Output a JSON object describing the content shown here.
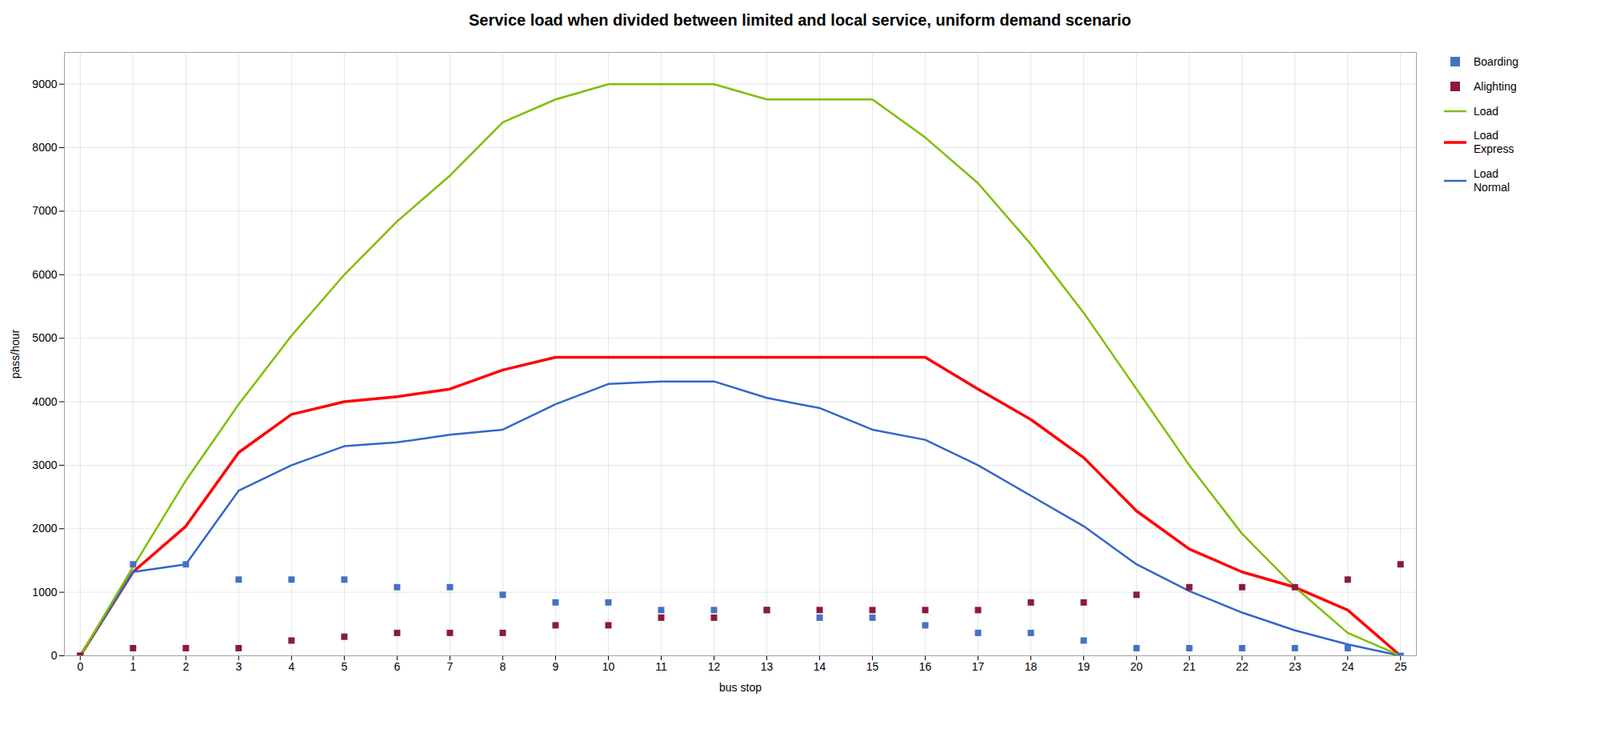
{
  "chart_data": {
    "type": "line",
    "title": "Service load when divided between limited and local service, uniform demand scenario",
    "xlabel": "bus stop",
    "ylabel": "pass/hour",
    "x": [
      0,
      1,
      2,
      3,
      4,
      5,
      6,
      7,
      8,
      9,
      10,
      11,
      12,
      13,
      14,
      15,
      16,
      17,
      18,
      19,
      20,
      21,
      22,
      23,
      24,
      25
    ],
    "series": [
      {
        "name": "Boarding",
        "type": "scatter",
        "marker": "square",
        "color": "#4472C4",
        "values": [
          0,
          1440,
          1440,
          1200,
          1200,
          1200,
          1080,
          1080,
          960,
          840,
          840,
          720,
          720,
          720,
          600,
          600,
          480,
          360,
          360,
          240,
          120,
          120,
          120,
          120,
          120,
          0
        ]
      },
      {
        "name": "Alighting",
        "type": "scatter",
        "marker": "square",
        "color": "#8B1A3A",
        "values": [
          0,
          120,
          120,
          120,
          240,
          300,
          360,
          360,
          360,
          480,
          480,
          600,
          600,
          720,
          720,
          720,
          720,
          720,
          840,
          840,
          960,
          1080,
          1080,
          1080,
          1200,
          1440
        ]
      },
      {
        "name": "Load",
        "type": "line",
        "color": "#7FBF00",
        "values": [
          0,
          1400,
          2760,
          3960,
          5040,
          6000,
          6840,
          7560,
          8400,
          8760,
          9000,
          9000,
          9000,
          8760,
          8760,
          8760,
          8160,
          7440,
          6480,
          5400,
          4200,
          3000,
          1920,
          1080,
          360,
          0
        ]
      },
      {
        "name": "Load\nExpress",
        "type": "line",
        "color": "#FF0000",
        "values": [
          0,
          1320,
          2040,
          3200,
          3800,
          4000,
          4080,
          4200,
          4500,
          4700,
          4700,
          4700,
          4700,
          4700,
          4700,
          4700,
          4700,
          4200,
          3720,
          3120,
          2280,
          1680,
          1320,
          1080,
          720,
          0
        ]
      },
      {
        "name": "Load\nNormal",
        "type": "line",
        "color": "#3366CC",
        "values": [
          0,
          1320,
          1440,
          2600,
          3000,
          3300,
          3360,
          3480,
          3560,
          3960,
          4280,
          4320,
          4320,
          4060,
          3900,
          3560,
          3400,
          3000,
          2520,
          2040,
          1440,
          1020,
          680,
          400,
          180,
          0
        ]
      }
    ],
    "xlim": [
      -0.3,
      25.3
    ],
    "ylim": [
      0,
      9500
    ],
    "xticks": [
      0,
      1,
      2,
      3,
      4,
      5,
      6,
      7,
      8,
      9,
      10,
      11,
      12,
      13,
      14,
      15,
      16,
      17,
      18,
      19,
      20,
      21,
      22,
      23,
      24,
      25
    ],
    "yticks": [
      0,
      1000,
      2000,
      3000,
      4000,
      5000,
      6000,
      7000,
      8000,
      9000
    ],
    "grid": true,
    "legend": "right"
  }
}
